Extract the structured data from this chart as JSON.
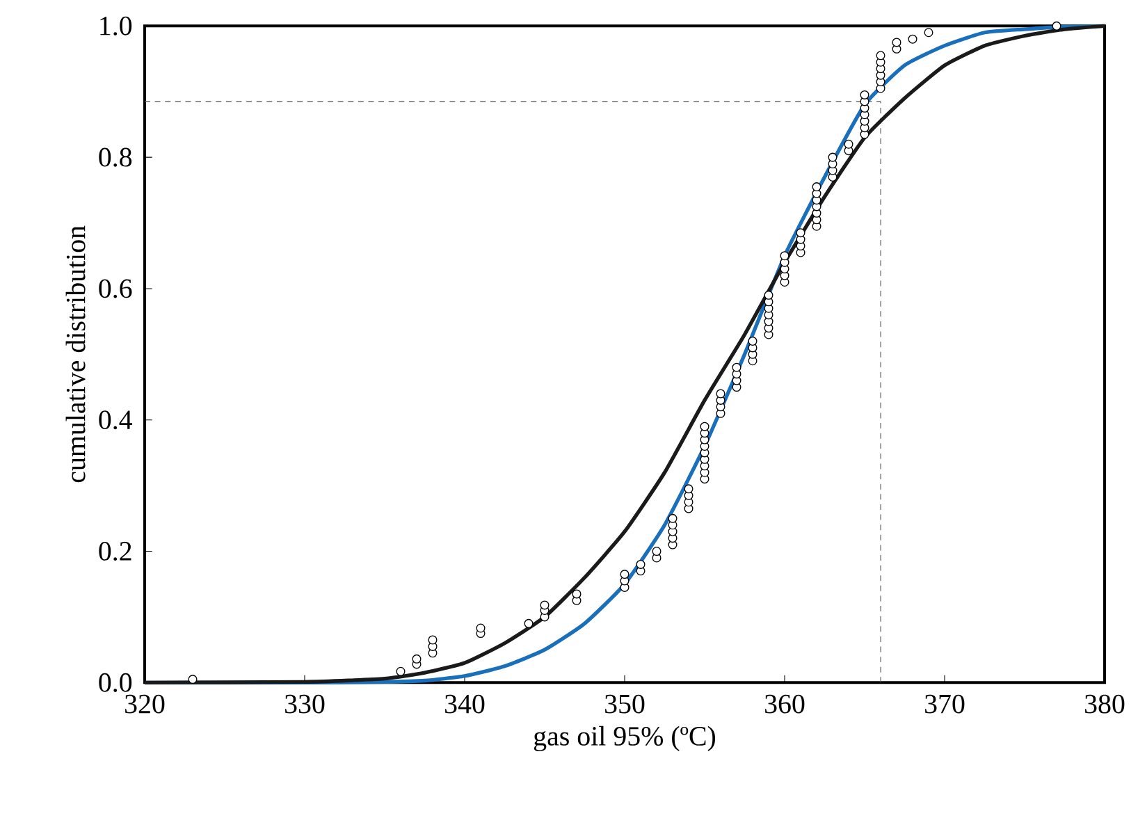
{
  "chart_data": {
    "type": "scatter",
    "xlabel": "gas oil 95% (ºC)",
    "ylabel": "cumulative distribution",
    "xlim": [
      320,
      380
    ],
    "ylim": [
      0,
      1.0
    ],
    "xticks": [
      320,
      330,
      340,
      350,
      360,
      370,
      380
    ],
    "yticks": [
      {
        "value": 0,
        "label": "0.0"
      },
      {
        "value": 0.2,
        "label": "0.2"
      },
      {
        "value": 0.4,
        "label": "0.4"
      },
      {
        "value": 0.6,
        "label": "0.6"
      },
      {
        "value": 0.8,
        "label": "0.8"
      },
      {
        "value": 1.0,
        "label": "1.0"
      }
    ],
    "ref_lines": [
      {
        "axis": "y",
        "value": 0.885,
        "line_style": "dashed",
        "color": "#555555"
      },
      {
        "axis": "x",
        "value": 366,
        "line_style": "dashed",
        "color": "#555555"
      }
    ],
    "series": [
      {
        "marker": "circle",
        "color": "#000000",
        "x": [
          323,
          336,
          337,
          337,
          338,
          338,
          338,
          341,
          341,
          344,
          345,
          345,
          345,
          347,
          347,
          350,
          350,
          350,
          351,
          351,
          352,
          352,
          353,
          353,
          353,
          353,
          353,
          354,
          354,
          354,
          354,
          355,
          355,
          355,
          355,
          355,
          355,
          355,
          355,
          355,
          356,
          356,
          356,
          356,
          357,
          357,
          357,
          357,
          358,
          358,
          358,
          358,
          359,
          359,
          359,
          359,
          359,
          359,
          359,
          360,
          360,
          360,
          360,
          360,
          361,
          361,
          361,
          361,
          362,
          362,
          362,
          362,
          362,
          362,
          362,
          363,
          363,
          363,
          363,
          364,
          364,
          365,
          365,
          365,
          365,
          365,
          365,
          365,
          366,
          366,
          366,
          366,
          366,
          366,
          367,
          367,
          368,
          369,
          377
        ],
        "values": [
          0.005,
          0.017,
          0.028,
          0.036,
          0.045,
          0.055,
          0.065,
          0.075,
          0.083,
          0.09,
          0.1,
          0.11,
          0.118,
          0.125,
          0.135,
          0.145,
          0.155,
          0.165,
          0.17,
          0.18,
          0.19,
          0.2,
          0.21,
          0.22,
          0.23,
          0.24,
          0.25,
          0.265,
          0.275,
          0.285,
          0.295,
          0.31,
          0.32,
          0.33,
          0.34,
          0.35,
          0.36,
          0.37,
          0.38,
          0.39,
          0.41,
          0.42,
          0.43,
          0.44,
          0.45,
          0.46,
          0.47,
          0.48,
          0.49,
          0.5,
          0.51,
          0.52,
          0.53,
          0.54,
          0.55,
          0.56,
          0.57,
          0.58,
          0.59,
          0.61,
          0.62,
          0.63,
          0.64,
          0.65,
          0.655,
          0.665,
          0.675,
          0.685,
          0.695,
          0.705,
          0.715,
          0.725,
          0.735,
          0.745,
          0.755,
          0.77,
          0.78,
          0.79,
          0.8,
          0.81,
          0.82,
          0.835,
          0.845,
          0.855,
          0.865,
          0.875,
          0.885,
          0.895,
          0.905,
          0.915,
          0.925,
          0.935,
          0.945,
          0.955,
          0.965,
          0.975,
          0.98,
          0.99,
          1.0
        ]
      },
      {
        "type": "line",
        "marker": "none",
        "color": "#1a6fba",
        "x": [
          320,
          330,
          335,
          337.5,
          340,
          342.5,
          345,
          347.5,
          350,
          352.5,
          355,
          357.5,
          360,
          362.5,
          365,
          367.5,
          370,
          372.5,
          375,
          377.5,
          380
        ],
        "values": [
          0,
          0,
          0.001,
          0.003,
          0.01,
          0.025,
          0.05,
          0.09,
          0.15,
          0.24,
          0.36,
          0.5,
          0.65,
          0.77,
          0.88,
          0.94,
          0.97,
          0.99,
          0.995,
          0.999,
          1.0
        ]
      },
      {
        "type": "line",
        "marker": "none",
        "color": "#1a1a1a",
        "x": [
          320,
          330,
          335,
          337.5,
          340,
          342.5,
          345,
          347.5,
          350,
          352.5,
          355,
          357.5,
          360,
          362.5,
          365,
          367.5,
          370,
          372.5,
          375,
          377.5,
          380
        ],
        "values": [
          0,
          0.001,
          0.006,
          0.015,
          0.03,
          0.06,
          0.1,
          0.16,
          0.23,
          0.32,
          0.43,
          0.53,
          0.64,
          0.74,
          0.83,
          0.89,
          0.94,
          0.97,
          0.985,
          0.995,
          1.0
        ]
      }
    ]
  }
}
